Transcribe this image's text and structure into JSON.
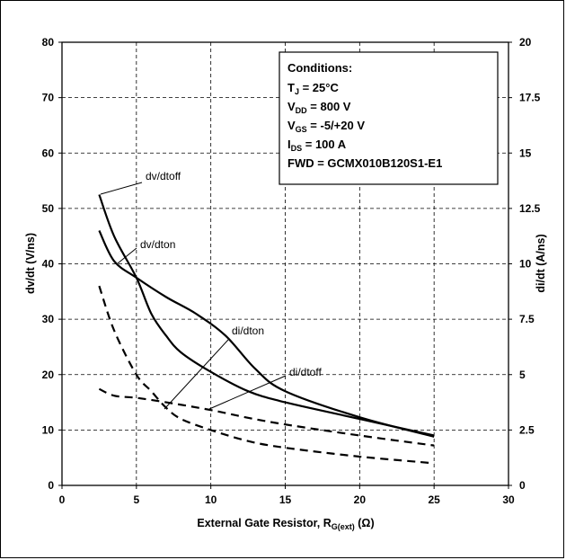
{
  "chart_data": {
    "type": "line",
    "xlabel": "External Gate Resistor, R",
    "xlabel_sub": "G(ext)",
    "xlabel_unit": " (Ω)",
    "ylabel_left": "dv/dt (V/ns)",
    "ylabel_right": "di/dt (A/ns)",
    "xlim": [
      0,
      30
    ],
    "ylim_left": [
      0,
      80
    ],
    "ylim_right": [
      0,
      20
    ],
    "x_ticks": [
      "0",
      "5",
      "10",
      "15",
      "20",
      "25",
      "30"
    ],
    "y_left_ticks": [
      "0",
      "10",
      "20",
      "30",
      "40",
      "50",
      "60",
      "70",
      "80"
    ],
    "y_right_ticks": [
      "0",
      "2.5",
      "5",
      "7.5",
      "10",
      "12.5",
      "15",
      "17.5",
      "20"
    ],
    "grid": true,
    "conditions": {
      "title": "Conditions:",
      "lines": [
        {
          "main": "T",
          "sub": "J",
          "rest": " = 25°C"
        },
        {
          "main": "V",
          "sub": "DD",
          "rest": " = 800 V"
        },
        {
          "main": "V",
          "sub": "GS",
          "rest": " = -5/+20 V"
        },
        {
          "main": "I",
          "sub": "DS",
          "rest": " = 100 A"
        },
        {
          "main": "FWD = GCMX010B120S1-E1",
          "sub": "",
          "rest": ""
        }
      ]
    },
    "series": [
      {
        "name": "dv/dtoff",
        "axis": "left",
        "style": "solid",
        "x": [
          2.5,
          3.5,
          5,
          6,
          7,
          8,
          10,
          12.5,
          15,
          20,
          25
        ],
        "y": [
          52.5,
          45,
          37.5,
          31,
          27,
          24,
          20.5,
          17,
          15,
          12,
          9
        ]
      },
      {
        "name": "dv/dton",
        "axis": "left",
        "style": "solid",
        "x": [
          2.5,
          3.5,
          5,
          7,
          9,
          11,
          13,
          15,
          20,
          25
        ],
        "y": [
          46,
          40.5,
          37.5,
          34,
          31,
          27,
          21,
          17,
          12.3,
          8.8
        ]
      },
      {
        "name": "di/dton",
        "axis": "right",
        "style": "dashed",
        "x": [
          2.5,
          3.5,
          5,
          6,
          7,
          8,
          10,
          12.5,
          15,
          20,
          25
        ],
        "y": [
          9,
          7,
          5,
          4.25,
          3.5,
          3,
          2.5,
          2,
          1.7,
          1.3,
          1
        ]
      },
      {
        "name": "di/dtoff",
        "axis": "right",
        "style": "dashed",
        "x": [
          2.5,
          3.5,
          5,
          7,
          10,
          12.5,
          15,
          20,
          25
        ],
        "y": [
          4.35,
          4.05,
          3.95,
          3.75,
          3.4,
          3.05,
          2.75,
          2.25,
          1.8
        ]
      }
    ],
    "annotations": [
      {
        "text": "dv/dtoff",
        "series": "dv/dtoff"
      },
      {
        "text": "dv/dton",
        "series": "dv/dton"
      },
      {
        "text": "di/dton",
        "series": "di/dton"
      },
      {
        "text": "di/dtoff",
        "series": "di/dtoff"
      }
    ]
  }
}
